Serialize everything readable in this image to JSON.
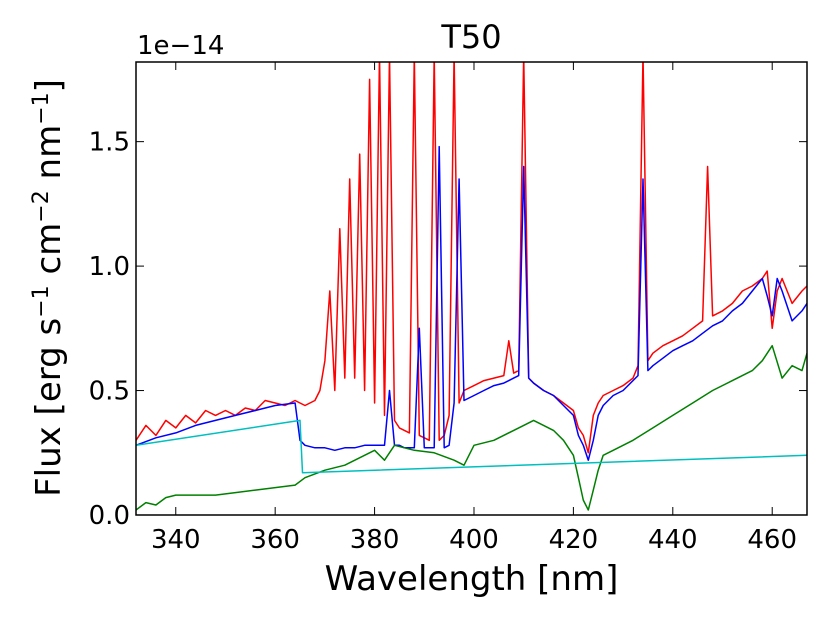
{
  "chart_data": {
    "type": "line",
    "title": "T50",
    "xlabel": "Wavelength [nm]",
    "ylabel": "Flux [erg s$^{-1}$ cm$^{-2}$ nm$^{-1}$]",
    "ylabel_parts": [
      "Flux [erg s",
      "−1",
      " cm",
      "−2",
      " nm",
      "−1",
      "]"
    ],
    "y_offset_text": "1e−14",
    "xlim": [
      332,
      467
    ],
    "ylim": [
      0,
      1.82
    ],
    "xticks": [
      340,
      360,
      380,
      400,
      420,
      440,
      460
    ],
    "yticks": [
      0.0,
      0.5,
      1.0,
      1.5
    ],
    "ytick_labels": [
      "0.0",
      "0.5",
      "1.0",
      "1.5"
    ],
    "grid": false,
    "series": [
      {
        "color": "#ff0000",
        "x": [
          332,
          334,
          336,
          338,
          340,
          342,
          344,
          346,
          348,
          350,
          352,
          354,
          356,
          358,
          360,
          362,
          364,
          365,
          366,
          368,
          369,
          370,
          371,
          372,
          373,
          374,
          375,
          376,
          377,
          378,
          379,
          380,
          381,
          382,
          383,
          384,
          385,
          386,
          387,
          388,
          389,
          390,
          391,
          392,
          393,
          394,
          395,
          396,
          397,
          398,
          400,
          402,
          404,
          406,
          407,
          408,
          409,
          410,
          411,
          412,
          414,
          416,
          418,
          420,
          421,
          422,
          423,
          424,
          425,
          426,
          428,
          430,
          432,
          433,
          434,
          435,
          436,
          438,
          440,
          442,
          444,
          446,
          447,
          448,
          450,
          452,
          454,
          456,
          458,
          459,
          460,
          461,
          462,
          464,
          466,
          467
        ],
        "y": [
          0.3,
          0.36,
          0.32,
          0.38,
          0.35,
          0.4,
          0.37,
          0.42,
          0.4,
          0.42,
          0.4,
          0.43,
          0.42,
          0.46,
          0.45,
          0.44,
          0.46,
          0.45,
          0.44,
          0.46,
          0.5,
          0.62,
          0.9,
          0.5,
          1.15,
          0.55,
          1.35,
          0.55,
          1.45,
          0.5,
          1.75,
          0.45,
          1.85,
          0.4,
          1.85,
          0.38,
          0.35,
          0.34,
          0.33,
          1.85,
          0.32,
          0.31,
          0.3,
          1.85,
          0.3,
          0.32,
          0.4,
          1.85,
          0.45,
          0.5,
          0.52,
          0.54,
          0.55,
          0.56,
          0.7,
          0.57,
          0.58,
          1.85,
          0.55,
          0.53,
          0.5,
          0.48,
          0.45,
          0.42,
          0.35,
          0.32,
          0.25,
          0.4,
          0.45,
          0.48,
          0.5,
          0.52,
          0.55,
          0.6,
          1.85,
          0.62,
          0.65,
          0.68,
          0.7,
          0.72,
          0.75,
          0.78,
          1.4,
          0.8,
          0.82,
          0.85,
          0.9,
          0.92,
          0.95,
          0.98,
          0.75,
          0.9,
          0.95,
          0.85,
          0.9,
          0.92
        ]
      },
      {
        "color": "#0000ff",
        "x": [
          332,
          336,
          340,
          344,
          348,
          352,
          356,
          360,
          364,
          365,
          366,
          368,
          370,
          372,
          374,
          376,
          378,
          380,
          382,
          383,
          384,
          385,
          386,
          388,
          389,
          390,
          392,
          393,
          394,
          395,
          396,
          397,
          398,
          400,
          402,
          404,
          406,
          408,
          409,
          410,
          411,
          412,
          414,
          416,
          418,
          420,
          421,
          422,
          423,
          424,
          425,
          426,
          428,
          430,
          432,
          433,
          434,
          435,
          436,
          438,
          440,
          442,
          444,
          446,
          448,
          450,
          452,
          454,
          456,
          458,
          459,
          460,
          461,
          462,
          464,
          466,
          467
        ],
        "y": [
          0.28,
          0.31,
          0.33,
          0.36,
          0.38,
          0.4,
          0.42,
          0.44,
          0.45,
          0.3,
          0.28,
          0.27,
          0.27,
          0.26,
          0.27,
          0.27,
          0.28,
          0.28,
          0.28,
          0.5,
          0.28,
          0.28,
          0.27,
          0.27,
          0.75,
          0.27,
          0.27,
          1.48,
          0.27,
          0.28,
          0.45,
          1.35,
          0.46,
          0.48,
          0.5,
          0.52,
          0.53,
          0.55,
          0.56,
          1.4,
          0.55,
          0.53,
          0.5,
          0.48,
          0.44,
          0.4,
          0.32,
          0.28,
          0.22,
          0.3,
          0.4,
          0.44,
          0.48,
          0.5,
          0.54,
          0.56,
          1.35,
          0.58,
          0.6,
          0.63,
          0.66,
          0.68,
          0.7,
          0.73,
          0.76,
          0.78,
          0.82,
          0.85,
          0.9,
          0.95,
          0.88,
          0.8,
          0.95,
          0.9,
          0.78,
          0.82,
          0.85
        ]
      },
      {
        "color": "#008000",
        "x": [
          332,
          334,
          336,
          338,
          340,
          344,
          348,
          352,
          356,
          360,
          364,
          366,
          370,
          374,
          378,
          380,
          382,
          384,
          388,
          392,
          396,
          398,
          400,
          404,
          408,
          410,
          412,
          414,
          416,
          418,
          420,
          421,
          422,
          423,
          424,
          425,
          426,
          428,
          432,
          436,
          440,
          444,
          448,
          452,
          456,
          458,
          460,
          462,
          464,
          466,
          467
        ],
        "y": [
          0.02,
          0.05,
          0.04,
          0.07,
          0.08,
          0.08,
          0.08,
          0.09,
          0.1,
          0.11,
          0.12,
          0.15,
          0.18,
          0.2,
          0.24,
          0.26,
          0.22,
          0.28,
          0.26,
          0.25,
          0.22,
          0.2,
          0.28,
          0.3,
          0.34,
          0.36,
          0.38,
          0.36,
          0.34,
          0.3,
          0.24,
          0.15,
          0.06,
          0.02,
          0.1,
          0.18,
          0.24,
          0.26,
          0.3,
          0.35,
          0.4,
          0.45,
          0.5,
          0.54,
          0.58,
          0.62,
          0.68,
          0.55,
          0.6,
          0.58,
          0.65
        ]
      },
      {
        "color": "#00bfbf",
        "x": [
          332,
          365,
          365.5,
          467
        ],
        "y": [
          0.28,
          0.38,
          0.17,
          0.24
        ]
      }
    ]
  }
}
